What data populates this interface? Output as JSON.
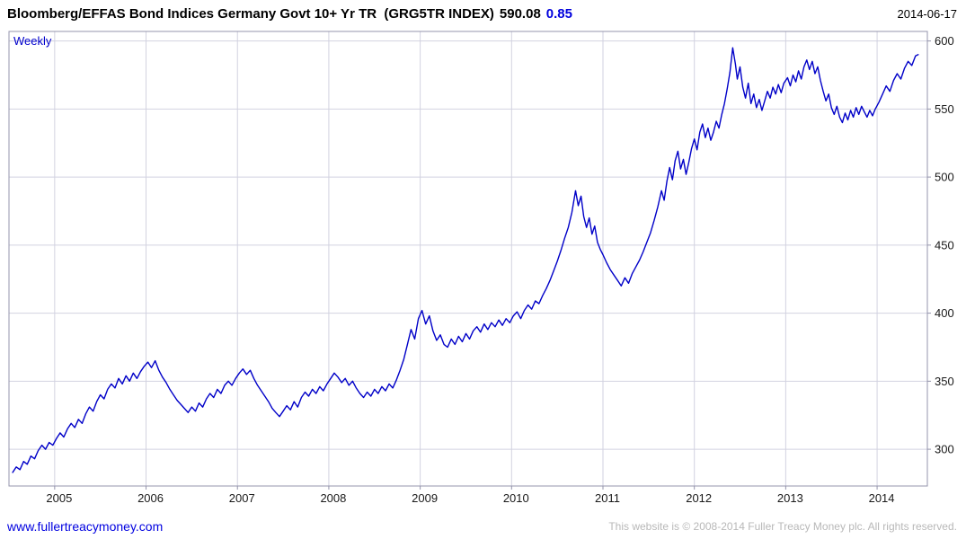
{
  "header": {
    "title": "Bloomberg/EFFAS Bond Indices Germany Govt 10+ Yr TR  (GRG5TR INDEX)",
    "last_value": "590.08",
    "change": "0.85",
    "date": "2014-06-17"
  },
  "chart": {
    "interval_label": "Weekly"
  },
  "footer": {
    "site_link": "www.fullertreacymoney.com",
    "copyright": "This website is © 2008-2014 Fuller Treacy Money plc. All rights reserved."
  },
  "colors": {
    "line": "#0000c8",
    "grid": "#d2d2e0",
    "border": "#9494ac",
    "tick_text": "#1a1a1a"
  },
  "chart_data": {
    "type": "line",
    "title": "Bloomberg/EFFAS Bond Indices Germany Govt 10+ Yr TR (GRG5TR INDEX)",
    "last_value": 590.08,
    "change": 0.85,
    "interval": "Weekly",
    "xlabel": "",
    "ylabel": "",
    "xlim": [
      2004.5,
      2014.55
    ],
    "ylim": [
      273,
      607
    ],
    "x_ticks": [
      2005,
      2006,
      2007,
      2008,
      2009,
      2010,
      2011,
      2012,
      2013,
      2014
    ],
    "y_ticks": [
      300,
      350,
      400,
      450,
      500,
      550,
      600
    ],
    "grid": true,
    "legend": "none",
    "series": [
      {
        "name": "GRG5TR Index",
        "points": [
          [
            2004.54,
            283
          ],
          [
            2004.58,
            287
          ],
          [
            2004.62,
            285
          ],
          [
            2004.66,
            291
          ],
          [
            2004.7,
            289
          ],
          [
            2004.74,
            295
          ],
          [
            2004.78,
            293
          ],
          [
            2004.82,
            299
          ],
          [
            2004.86,
            303
          ],
          [
            2004.9,
            300
          ],
          [
            2004.94,
            305
          ],
          [
            2004.98,
            303
          ],
          [
            2005.02,
            308
          ],
          [
            2005.06,
            312
          ],
          [
            2005.1,
            309
          ],
          [
            2005.14,
            315
          ],
          [
            2005.18,
            319
          ],
          [
            2005.22,
            316
          ],
          [
            2005.26,
            322
          ],
          [
            2005.3,
            319
          ],
          [
            2005.34,
            326
          ],
          [
            2005.38,
            331
          ],
          [
            2005.42,
            328
          ],
          [
            2005.46,
            335
          ],
          [
            2005.5,
            340
          ],
          [
            2005.54,
            337
          ],
          [
            2005.58,
            344
          ],
          [
            2005.62,
            348
          ],
          [
            2005.66,
            345
          ],
          [
            2005.7,
            352
          ],
          [
            2005.74,
            348
          ],
          [
            2005.78,
            354
          ],
          [
            2005.82,
            350
          ],
          [
            2005.86,
            356
          ],
          [
            2005.9,
            352
          ],
          [
            2005.94,
            357
          ],
          [
            2005.98,
            361
          ],
          [
            2006.02,
            364
          ],
          [
            2006.06,
            360
          ],
          [
            2006.1,
            365
          ],
          [
            2006.14,
            358
          ],
          [
            2006.18,
            353
          ],
          [
            2006.22,
            349
          ],
          [
            2006.26,
            344
          ],
          [
            2006.3,
            340
          ],
          [
            2006.34,
            336
          ],
          [
            2006.38,
            333
          ],
          [
            2006.42,
            330
          ],
          [
            2006.46,
            327
          ],
          [
            2006.5,
            331
          ],
          [
            2006.54,
            328
          ],
          [
            2006.58,
            334
          ],
          [
            2006.62,
            331
          ],
          [
            2006.66,
            337
          ],
          [
            2006.7,
            341
          ],
          [
            2006.74,
            338
          ],
          [
            2006.78,
            344
          ],
          [
            2006.82,
            341
          ],
          [
            2006.86,
            347
          ],
          [
            2006.9,
            350
          ],
          [
            2006.94,
            347
          ],
          [
            2006.98,
            352
          ],
          [
            2007.02,
            356
          ],
          [
            2007.06,
            359
          ],
          [
            2007.1,
            355
          ],
          [
            2007.14,
            358
          ],
          [
            2007.18,
            352
          ],
          [
            2007.22,
            347
          ],
          [
            2007.26,
            343
          ],
          [
            2007.3,
            339
          ],
          [
            2007.34,
            335
          ],
          [
            2007.38,
            330
          ],
          [
            2007.42,
            327
          ],
          [
            2007.46,
            324
          ],
          [
            2007.5,
            328
          ],
          [
            2007.54,
            332
          ],
          [
            2007.58,
            329
          ],
          [
            2007.62,
            335
          ],
          [
            2007.66,
            331
          ],
          [
            2007.7,
            338
          ],
          [
            2007.74,
            342
          ],
          [
            2007.78,
            339
          ],
          [
            2007.82,
            344
          ],
          [
            2007.86,
            341
          ],
          [
            2007.9,
            346
          ],
          [
            2007.94,
            343
          ],
          [
            2007.98,
            348
          ],
          [
            2008.02,
            352
          ],
          [
            2008.06,
            356
          ],
          [
            2008.1,
            353
          ],
          [
            2008.14,
            349
          ],
          [
            2008.18,
            352
          ],
          [
            2008.22,
            347
          ],
          [
            2008.26,
            350
          ],
          [
            2008.3,
            345
          ],
          [
            2008.34,
            341
          ],
          [
            2008.38,
            338
          ],
          [
            2008.42,
            342
          ],
          [
            2008.46,
            339
          ],
          [
            2008.5,
            344
          ],
          [
            2008.54,
            341
          ],
          [
            2008.58,
            346
          ],
          [
            2008.62,
            343
          ],
          [
            2008.66,
            348
          ],
          [
            2008.7,
            345
          ],
          [
            2008.74,
            351
          ],
          [
            2008.78,
            358
          ],
          [
            2008.82,
            366
          ],
          [
            2008.86,
            377
          ],
          [
            2008.9,
            388
          ],
          [
            2008.94,
            381
          ],
          [
            2008.98,
            396
          ],
          [
            2009.02,
            402
          ],
          [
            2009.06,
            392
          ],
          [
            2009.1,
            398
          ],
          [
            2009.14,
            387
          ],
          [
            2009.18,
            380
          ],
          [
            2009.22,
            384
          ],
          [
            2009.26,
            377
          ],
          [
            2009.3,
            375
          ],
          [
            2009.34,
            381
          ],
          [
            2009.38,
            377
          ],
          [
            2009.42,
            383
          ],
          [
            2009.46,
            379
          ],
          [
            2009.5,
            385
          ],
          [
            2009.54,
            381
          ],
          [
            2009.58,
            387
          ],
          [
            2009.62,
            390
          ],
          [
            2009.66,
            386
          ],
          [
            2009.7,
            392
          ],
          [
            2009.74,
            388
          ],
          [
            2009.78,
            393
          ],
          [
            2009.82,
            390
          ],
          [
            2009.86,
            395
          ],
          [
            2009.9,
            391
          ],
          [
            2009.94,
            396
          ],
          [
            2009.98,
            393
          ],
          [
            2010.02,
            398
          ],
          [
            2010.06,
            401
          ],
          [
            2010.1,
            396
          ],
          [
            2010.14,
            402
          ],
          [
            2010.18,
            406
          ],
          [
            2010.22,
            403
          ],
          [
            2010.26,
            409
          ],
          [
            2010.3,
            407
          ],
          [
            2010.34,
            413
          ],
          [
            2010.38,
            418
          ],
          [
            2010.42,
            424
          ],
          [
            2010.46,
            431
          ],
          [
            2010.5,
            438
          ],
          [
            2010.54,
            446
          ],
          [
            2010.58,
            455
          ],
          [
            2010.62,
            463
          ],
          [
            2010.66,
            474
          ],
          [
            2010.7,
            490
          ],
          [
            2010.73,
            479
          ],
          [
            2010.76,
            486
          ],
          [
            2010.79,
            471
          ],
          [
            2010.82,
            463
          ],
          [
            2010.85,
            470
          ],
          [
            2010.88,
            458
          ],
          [
            2010.91,
            464
          ],
          [
            2010.94,
            452
          ],
          [
            2010.97,
            447
          ],
          [
            2011.0,
            443
          ],
          [
            2011.04,
            437
          ],
          [
            2011.08,
            432
          ],
          [
            2011.12,
            428
          ],
          [
            2011.16,
            424
          ],
          [
            2011.2,
            420
          ],
          [
            2011.24,
            426
          ],
          [
            2011.28,
            422
          ],
          [
            2011.32,
            429
          ],
          [
            2011.36,
            434
          ],
          [
            2011.4,
            439
          ],
          [
            2011.44,
            445
          ],
          [
            2011.48,
            452
          ],
          [
            2011.52,
            459
          ],
          [
            2011.56,
            468
          ],
          [
            2011.6,
            478
          ],
          [
            2011.64,
            490
          ],
          [
            2011.67,
            483
          ],
          [
            2011.7,
            497
          ],
          [
            2011.73,
            507
          ],
          [
            2011.76,
            498
          ],
          [
            2011.79,
            512
          ],
          [
            2011.82,
            519
          ],
          [
            2011.85,
            506
          ],
          [
            2011.88,
            513
          ],
          [
            2011.91,
            502
          ],
          [
            2011.94,
            511
          ],
          [
            2011.97,
            521
          ],
          [
            2012.0,
            528
          ],
          [
            2012.03,
            520
          ],
          [
            2012.06,
            533
          ],
          [
            2012.09,
            539
          ],
          [
            2012.12,
            529
          ],
          [
            2012.15,
            536
          ],
          [
            2012.18,
            527
          ],
          [
            2012.21,
            533
          ],
          [
            2012.24,
            541
          ],
          [
            2012.27,
            536
          ],
          [
            2012.3,
            546
          ],
          [
            2012.33,
            554
          ],
          [
            2012.36,
            565
          ],
          [
            2012.39,
            577
          ],
          [
            2012.42,
            595
          ],
          [
            2012.45,
            583
          ],
          [
            2012.47,
            572
          ],
          [
            2012.5,
            581
          ],
          [
            2012.53,
            566
          ],
          [
            2012.56,
            558
          ],
          [
            2012.59,
            569
          ],
          [
            2012.62,
            554
          ],
          [
            2012.65,
            561
          ],
          [
            2012.68,
            551
          ],
          [
            2012.71,
            557
          ],
          [
            2012.74,
            549
          ],
          [
            2012.77,
            556
          ],
          [
            2012.8,
            563
          ],
          [
            2012.83,
            558
          ],
          [
            2012.86,
            566
          ],
          [
            2012.89,
            561
          ],
          [
            2012.92,
            568
          ],
          [
            2012.95,
            562
          ],
          [
            2012.98,
            569
          ],
          [
            2013.02,
            573
          ],
          [
            2013.05,
            567
          ],
          [
            2013.08,
            575
          ],
          [
            2013.11,
            570
          ],
          [
            2013.14,
            578
          ],
          [
            2013.17,
            572
          ],
          [
            2013.2,
            581
          ],
          [
            2013.23,
            586
          ],
          [
            2013.26,
            579
          ],
          [
            2013.29,
            585
          ],
          [
            2013.32,
            576
          ],
          [
            2013.35,
            581
          ],
          [
            2013.38,
            571
          ],
          [
            2013.41,
            563
          ],
          [
            2013.44,
            556
          ],
          [
            2013.47,
            561
          ],
          [
            2013.5,
            551
          ],
          [
            2013.53,
            546
          ],
          [
            2013.56,
            552
          ],
          [
            2013.59,
            544
          ],
          [
            2013.62,
            540
          ],
          [
            2013.65,
            547
          ],
          [
            2013.68,
            542
          ],
          [
            2013.71,
            549
          ],
          [
            2013.74,
            544
          ],
          [
            2013.77,
            551
          ],
          [
            2013.8,
            546
          ],
          [
            2013.83,
            552
          ],
          [
            2013.86,
            548
          ],
          [
            2013.89,
            544
          ],
          [
            2013.92,
            549
          ],
          [
            2013.95,
            545
          ],
          [
            2013.98,
            550
          ],
          [
            2014.02,
            555
          ],
          [
            2014.06,
            561
          ],
          [
            2014.1,
            567
          ],
          [
            2014.14,
            563
          ],
          [
            2014.18,
            571
          ],
          [
            2014.22,
            576
          ],
          [
            2014.26,
            572
          ],
          [
            2014.3,
            580
          ],
          [
            2014.34,
            585
          ],
          [
            2014.38,
            582
          ],
          [
            2014.42,
            589
          ],
          [
            2014.45,
            590
          ]
        ]
      }
    ]
  }
}
